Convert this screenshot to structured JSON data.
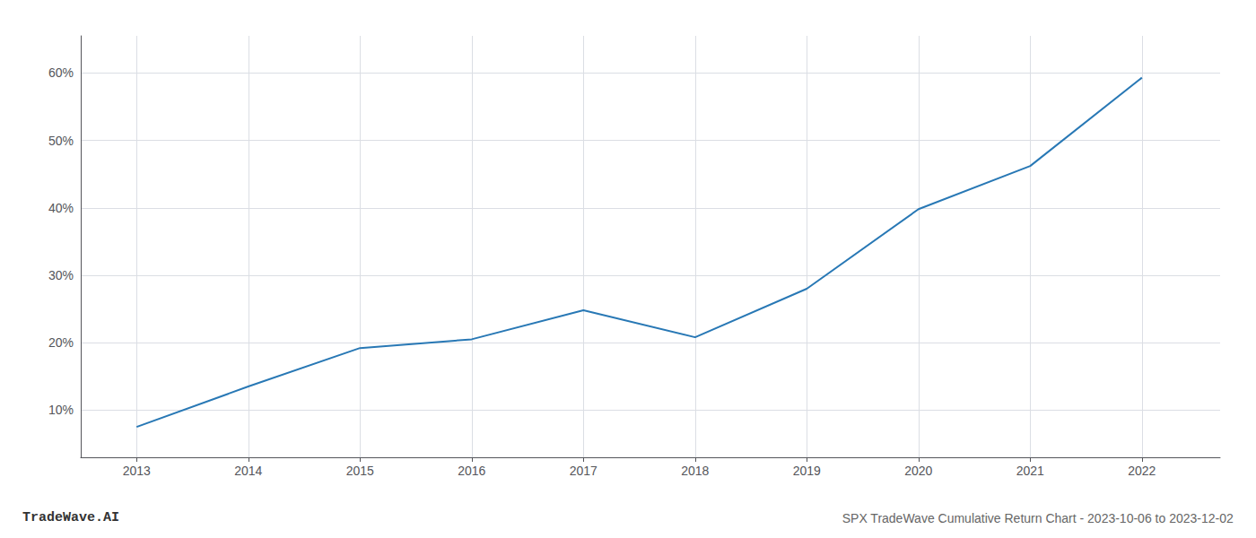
{
  "chart_data": {
    "type": "line",
    "title": "SPX TradeWave Cumulative Return Chart - 2023-10-06 to 2023-12-02",
    "annotations": [
      {
        "text": "TradeWave.AI"
      }
    ],
    "x": [
      2013,
      2014,
      2015,
      2016,
      2017,
      2018,
      2019,
      2020,
      2021,
      2022
    ],
    "values": [
      0.075,
      0.135,
      0.192,
      0.205,
      0.248,
      0.208,
      0.28,
      0.398,
      0.462,
      0.593
    ],
    "color": "#2878b5",
    "xlim": [
      2012.5,
      2022.7
    ],
    "xticks": [
      2013,
      2014,
      2015,
      2016,
      2017,
      2018,
      2019,
      2020,
      2021,
      2022
    ],
    "ylim": [
      0.03,
      0.655
    ],
    "yticks": [
      {
        "value": 0.1,
        "label": "10%"
      },
      {
        "value": 0.2,
        "label": "20%"
      },
      {
        "value": 0.3,
        "label": "30%"
      },
      {
        "value": 0.4,
        "label": "40%"
      },
      {
        "value": 0.5,
        "label": "50%"
      },
      {
        "value": 0.6,
        "label": "60%"
      }
    ],
    "grid": true
  }
}
